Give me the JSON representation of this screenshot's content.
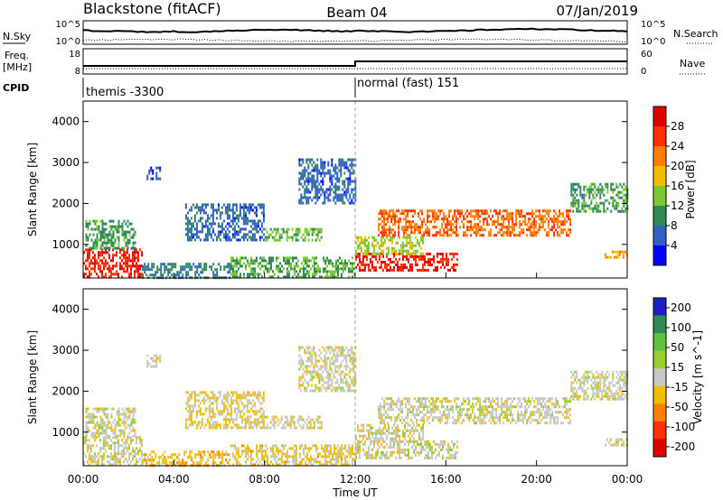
{
  "header": {
    "station": "Blackstone (fitACF)",
    "beam": "Beam 04",
    "date": "07/Jan/2019"
  },
  "noise_panel": {
    "left_label": "N.Sky",
    "right_label": "N.Search",
    "left_ticks": [
      "10^5",
      "10^0"
    ],
    "right_ticks": [
      "10^5",
      "10^0"
    ]
  },
  "freq_panel": {
    "left_label_line1": "Freq.",
    "left_label_line2": "[MHz]",
    "right_label": "Nave",
    "left_ticks": [
      "18",
      "8"
    ],
    "right_ticks": [
      "60",
      "0"
    ]
  },
  "cpid": {
    "label": "CPID",
    "segments": [
      {
        "start_hour": 0,
        "text": "themis -3300"
      },
      {
        "start_hour": 12,
        "text": "normal (fast) 151"
      }
    ]
  },
  "time_axis": {
    "label": "Time UT",
    "ticks": [
      "00:00",
      "04:00",
      "08:00",
      "12:00",
      "16:00",
      "20:00",
      "00:00"
    ]
  },
  "chart_data": [
    {
      "type": "heatmap",
      "title": "",
      "xlabel": "Time UT",
      "ylabel": "Slant Range [km]",
      "x_range_hours": [
        0,
        24
      ],
      "ylim": [
        180,
        4500
      ],
      "y_ticks": [
        1000,
        2000,
        3000,
        4000
      ],
      "colorbar": {
        "label": "Power [dB]",
        "ticks": [
          "4",
          "8",
          "12",
          "16",
          "20",
          "24",
          "28"
        ],
        "range": [
          0,
          30
        ],
        "colors": [
          "#0000ff",
          "#3060c0",
          "#2e8b57",
          "#7dc832",
          "#f0c000",
          "#ff8000",
          "#ff3000",
          "#e00000"
        ]
      },
      "echo_regions": [
        {
          "t0": 0.0,
          "t1": 2.6,
          "r0": 180,
          "r1": 900,
          "value": 26
        },
        {
          "t0": 0.1,
          "t1": 2.3,
          "r0": 900,
          "r1": 1600,
          "value": 10
        },
        {
          "t0": 2.6,
          "t1": 6.5,
          "r0": 180,
          "r1": 550,
          "value": 8
        },
        {
          "t0": 6.5,
          "t1": 12.0,
          "r0": 180,
          "r1": 700,
          "value": 11
        },
        {
          "t0": 4.5,
          "t1": 8.0,
          "r0": 1100,
          "r1": 2000,
          "value": 6
        },
        {
          "t0": 8.0,
          "t1": 10.5,
          "r0": 1100,
          "r1": 1400,
          "value": 12
        },
        {
          "t0": 9.5,
          "t1": 12.0,
          "r0": 2000,
          "r1": 3100,
          "value": 6
        },
        {
          "t0": 12.0,
          "t1": 16.5,
          "r0": 400,
          "r1": 800,
          "value": 26
        },
        {
          "t0": 12.0,
          "t1": 15.0,
          "r0": 800,
          "r1": 1200,
          "value": 14
        },
        {
          "t0": 13.0,
          "t1": 21.5,
          "r0": 1200,
          "r1": 1850,
          "value": 22
        },
        {
          "t0": 21.5,
          "t1": 24.0,
          "r0": 1800,
          "r1": 2500,
          "value": 10
        },
        {
          "t0": 23.0,
          "t1": 24.0,
          "r0": 680,
          "r1": 850,
          "value": 18
        },
        {
          "t0": 2.8,
          "t1": 3.4,
          "r0": 2600,
          "r1": 2900,
          "value": 4
        }
      ]
    },
    {
      "type": "heatmap",
      "title": "",
      "xlabel": "Time UT",
      "ylabel": "Slant Range [km]",
      "x_range_hours": [
        0,
        24
      ],
      "ylim": [
        180,
        4500
      ],
      "y_ticks": [
        1000,
        2000,
        3000,
        4000
      ],
      "colorbar": {
        "label": "Velocity [m s^-1]",
        "ticks": [
          "200",
          "100",
          "50",
          "15",
          "-15",
          "-50",
          "-100",
          "-200"
        ],
        "range": [
          -250,
          250
        ],
        "colors": [
          "#2020c0",
          "#2e8b57",
          "#60c040",
          "#9acd32",
          "#c8c8c8",
          "#f0c000",
          "#ff8000",
          "#ff3000",
          "#e00000"
        ]
      },
      "echo_regions": [
        {
          "t0": 0.0,
          "t1": 2.6,
          "r0": 180,
          "r1": 900,
          "value": -5
        },
        {
          "t0": 0.1,
          "t1": 2.3,
          "r0": 900,
          "r1": 1600,
          "value": 0
        },
        {
          "t0": 2.6,
          "t1": 6.5,
          "r0": 180,
          "r1": 550,
          "value": -60
        },
        {
          "t0": 6.5,
          "t1": 12.0,
          "r0": 180,
          "r1": 700,
          "value": -40
        },
        {
          "t0": 4.5,
          "t1": 8.0,
          "r0": 1100,
          "r1": 2000,
          "value": -30
        },
        {
          "t0": 8.0,
          "t1": 10.5,
          "r0": 1100,
          "r1": 1400,
          "value": -5
        },
        {
          "t0": 9.5,
          "t1": 12.0,
          "r0": 2000,
          "r1": 3100,
          "value": 0
        },
        {
          "t0": 12.0,
          "t1": 16.5,
          "r0": 400,
          "r1": 800,
          "value": 0
        },
        {
          "t0": 12.0,
          "t1": 15.0,
          "r0": 800,
          "r1": 1200,
          "value": -5
        },
        {
          "t0": 13.0,
          "t1": 21.5,
          "r0": 1200,
          "r1": 1850,
          "value": 0
        },
        {
          "t0": 21.5,
          "t1": 24.0,
          "r0": 1800,
          "r1": 2500,
          "value": 0
        },
        {
          "t0": 23.0,
          "t1": 24.0,
          "r0": 680,
          "r1": 850,
          "value": 0
        },
        {
          "t0": 2.8,
          "t1": 3.4,
          "r0": 2600,
          "r1": 2900,
          "value": -20
        }
      ]
    }
  ]
}
